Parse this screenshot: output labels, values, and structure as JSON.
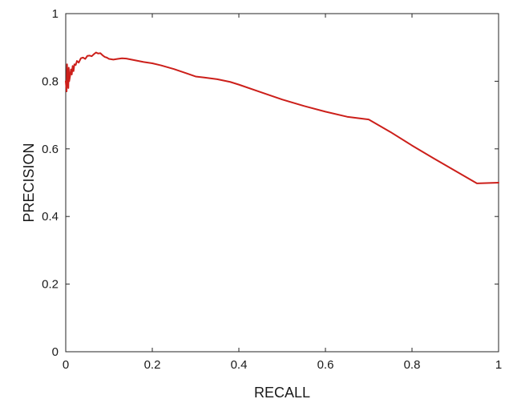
{
  "chart_data": {
    "type": "line",
    "title": "",
    "xlabel": "RECALL",
    "ylabel": "PRECISION",
    "xlim": [
      0,
      1
    ],
    "ylim": [
      0,
      1
    ],
    "xticks": [
      0,
      0.2,
      0.4,
      0.6,
      0.8,
      1
    ],
    "yticks": [
      0,
      0.2,
      0.4,
      0.6,
      0.8,
      1
    ],
    "xtick_labels": [
      "0",
      "0.2",
      "0.4",
      "0.6",
      "0.8",
      "1"
    ],
    "ytick_labels": [
      "0",
      "0.2",
      "0.4",
      "0.6",
      "0.8",
      "1"
    ],
    "grid": false,
    "legend": "none",
    "series": [
      {
        "color": "#cc1f1a",
        "x": [
          0.0,
          0.002,
          0.003,
          0.004,
          0.005,
          0.006,
          0.007,
          0.008,
          0.01,
          0.012,
          0.014,
          0.016,
          0.018,
          0.02,
          0.023,
          0.026,
          0.03,
          0.035,
          0.04,
          0.045,
          0.05,
          0.055,
          0.06,
          0.065,
          0.07,
          0.075,
          0.08,
          0.085,
          0.09,
          0.095,
          0.1,
          0.11,
          0.12,
          0.13,
          0.14,
          0.16,
          0.18,
          0.2,
          0.22,
          0.25,
          0.28,
          0.3,
          0.32,
          0.35,
          0.38,
          0.4,
          0.45,
          0.5,
          0.55,
          0.6,
          0.65,
          0.7,
          0.75,
          0.8,
          0.85,
          0.9,
          0.95,
          1.0
        ],
        "y": [
          0.8,
          0.77,
          0.85,
          0.79,
          0.83,
          0.78,
          0.84,
          0.8,
          0.815,
          0.835,
          0.82,
          0.845,
          0.83,
          0.85,
          0.848,
          0.86,
          0.855,
          0.868,
          0.87,
          0.866,
          0.875,
          0.876,
          0.874,
          0.88,
          0.885,
          0.882,
          0.883,
          0.877,
          0.872,
          0.87,
          0.866,
          0.864,
          0.866,
          0.868,
          0.867,
          0.862,
          0.857,
          0.853,
          0.847,
          0.836,
          0.823,
          0.814,
          0.811,
          0.806,
          0.798,
          0.79,
          0.768,
          0.746,
          0.727,
          0.71,
          0.695,
          0.687,
          0.65,
          0.61,
          0.572,
          0.535,
          0.498,
          0.5
        ]
      }
    ]
  }
}
